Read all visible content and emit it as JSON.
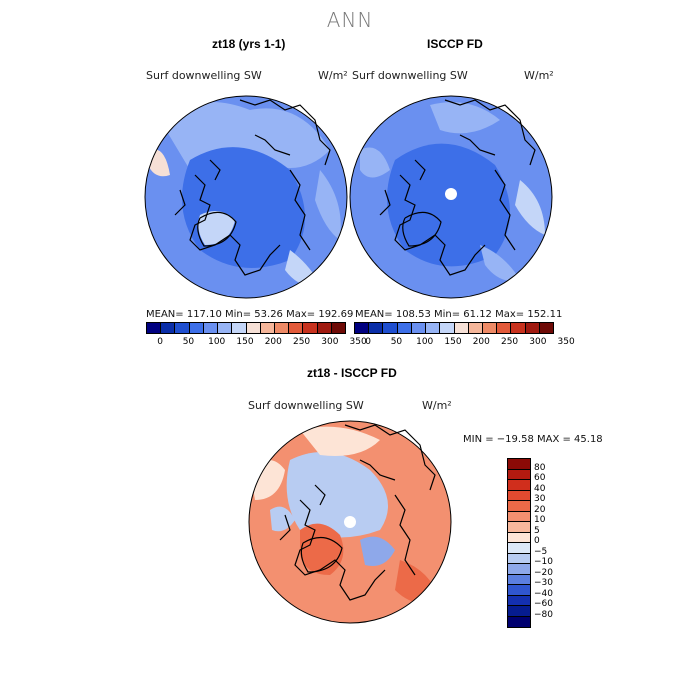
{
  "figure": {
    "title": "ANN"
  },
  "panels": [
    {
      "title": "zt18 (yrs 1-1)",
      "variable": "Surf downwelling SW",
      "units": "W/m²",
      "stats": "MEAN= 117.10   Min=  53.26   Max= 192.69"
    },
    {
      "title": "ISCCP FD",
      "variable": "Surf downwelling SW",
      "units": "W/m²",
      "stats": "MEAN= 108.53   Min=  61.12   Max= 152.11"
    },
    {
      "title": "zt18 - ISCCP FD",
      "variable": "Surf downwelling SW",
      "units": "W/m²",
      "stats": "MIN = −19.58  MAX =  45.18"
    }
  ],
  "colorbar_abs": {
    "ticks": [
      "0",
      "50",
      "100",
      "150",
      "200",
      "250",
      "300",
      "350"
    ],
    "colors": [
      "#000080",
      "#0a2ea8",
      "#1f4fd0",
      "#3d6fe8",
      "#6a90f0",
      "#97b4f5",
      "#c4d6f8",
      "#f6e0d6",
      "#f5b69a",
      "#ee8a66",
      "#e25a3a",
      "#c8321e",
      "#a01a10",
      "#6e0a06"
    ]
  },
  "colorbar_diff": {
    "ticks": [
      "80",
      "60",
      "40",
      "30",
      "20",
      "10",
      "5",
      "0",
      "−5",
      "−10",
      "−20",
      "−30",
      "−40",
      "−60",
      "−80"
    ],
    "colors": [
      "#8b0a06",
      "#b21a10",
      "#d02e1c",
      "#e24a30",
      "#ec6a48",
      "#f39070",
      "#f8b89c",
      "#fde4d6",
      "#dce8f8",
      "#b8ccf2",
      "#8ea8ea",
      "#5c7fe0",
      "#3056d0",
      "#1430b0",
      "#061c90",
      "#000070"
    ]
  },
  "map_colors": {
    "abs_background": "#6a90f0",
    "abs_dark": "#3d6fe8",
    "abs_light": "#97b4f5",
    "abs_lighter": "#c4d6f8",
    "abs_warm": "#f6e0d6",
    "diff_background": "#f39070",
    "diff_warm": "#ec6a48",
    "diff_light": "#fde4d6",
    "diff_cool": "#b8ccf2",
    "diff_cool2": "#8ea8ea"
  }
}
